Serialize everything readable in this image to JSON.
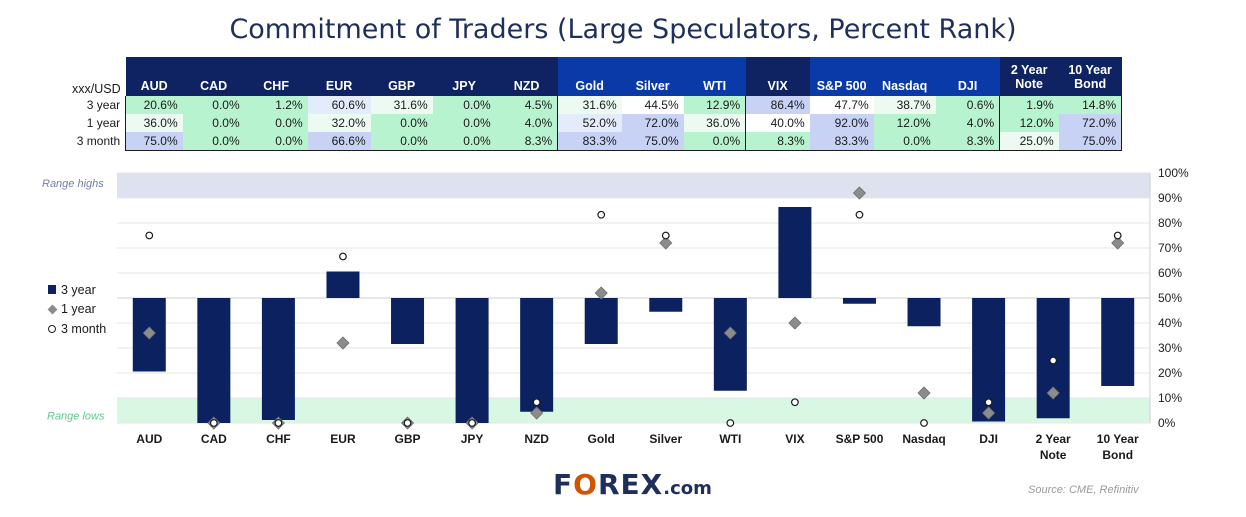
{
  "title": "Commitment of Traders (Large Speculators, Percent Rank)",
  "table": {
    "corner_label": "xxx/USD",
    "headers": [
      "AUD",
      "CAD",
      "CHF",
      "EUR",
      "GBP",
      "JPY",
      "NZD",
      "Gold",
      "Silver",
      "WTI",
      "VIX",
      "S&P 500",
      "Nasdaq",
      "DJI",
      "2 Year Note",
      "10 Year Bond"
    ],
    "header_lines": [
      [
        "AUD"
      ],
      [
        "CAD"
      ],
      [
        "CHF"
      ],
      [
        "EUR"
      ],
      [
        "GBP"
      ],
      [
        "JPY"
      ],
      [
        "NZD"
      ],
      [
        "Gold"
      ],
      [
        "Silver"
      ],
      [
        "WTI"
      ],
      [
        "VIX"
      ],
      [
        "S&P 500"
      ],
      [
        "Nasdaq"
      ],
      [
        "DJI"
      ],
      [
        "2 Year",
        "Note"
      ],
      [
        "10 Year",
        "Bond"
      ]
    ],
    "rows": [
      {
        "label": "3 year",
        "values": [
          "20.6%",
          "0.0%",
          "1.2%",
          "60.6%",
          "31.6%",
          "0.0%",
          "4.5%",
          "31.6%",
          "44.5%",
          "12.9%",
          "86.4%",
          "47.7%",
          "38.7%",
          "0.6%",
          "1.9%",
          "14.8%"
        ]
      },
      {
        "label": "1 year",
        "values": [
          "36.0%",
          "0.0%",
          "0.0%",
          "32.0%",
          "0.0%",
          "0.0%",
          "4.0%",
          "52.0%",
          "72.0%",
          "36.0%",
          "40.0%",
          "92.0%",
          "12.0%",
          "4.0%",
          "12.0%",
          "72.0%"
        ]
      },
      {
        "label": "3 month",
        "values": [
          "75.0%",
          "0.0%",
          "0.0%",
          "66.6%",
          "0.0%",
          "0.0%",
          "8.3%",
          "83.3%",
          "75.0%",
          "0.0%",
          "8.3%",
          "83.3%",
          "0.0%",
          "8.3%",
          "25.0%",
          "75.0%"
        ]
      }
    ]
  },
  "colors": {
    "bar": "#0b2160",
    "diamond": "#8c8c8c",
    "range_high_band": "#dde2ee",
    "range_low_band": "#d9f8e4",
    "range_high_text": "#6f7fa8",
    "range_low_text": "#5fc78a",
    "header_dark": "#0f2262",
    "header_blue": "#0a3aa8"
  },
  "chart_data": {
    "type": "bar",
    "categories": [
      "AUD",
      "CAD",
      "CHF",
      "EUR",
      "GBP",
      "JPY",
      "NZD",
      "Gold",
      "Silver",
      "WTI",
      "VIX",
      "S&P 500",
      "Nasdaq",
      "DJI",
      "2 Year Note",
      "10 Year Bond"
    ],
    "category_lines": [
      [
        "AUD"
      ],
      [
        "CAD"
      ],
      [
        "CHF"
      ],
      [
        "EUR"
      ],
      [
        "GBP"
      ],
      [
        "JPY"
      ],
      [
        "NZD"
      ],
      [
        "Gold"
      ],
      [
        "Silver"
      ],
      [
        "WTI"
      ],
      [
        "VIX"
      ],
      [
        "S&P 500"
      ],
      [
        "Nasdaq"
      ],
      [
        "DJI"
      ],
      [
        "2 Year",
        "Note"
      ],
      [
        "10 Year",
        "Bond"
      ]
    ],
    "baseline": 50,
    "series": [
      {
        "name": "3 year",
        "marker": "bar",
        "values": [
          20.6,
          0.0,
          1.2,
          60.6,
          31.6,
          0.0,
          4.5,
          31.6,
          44.5,
          12.9,
          86.4,
          47.7,
          38.7,
          0.6,
          1.9,
          14.8
        ]
      },
      {
        "name": "1 year",
        "marker": "diamond",
        "values": [
          36.0,
          0.0,
          0.0,
          32.0,
          0.0,
          0.0,
          4.0,
          52.0,
          72.0,
          36.0,
          40.0,
          92.0,
          12.0,
          4.0,
          12.0,
          72.0
        ]
      },
      {
        "name": "3 month",
        "marker": "circle",
        "values": [
          75.0,
          0.0,
          0.0,
          66.6,
          0.0,
          0.0,
          8.3,
          83.3,
          75.0,
          0.0,
          8.3,
          83.3,
          0.0,
          8.3,
          25.0,
          75.0
        ]
      }
    ],
    "ylim": [
      0,
      100
    ],
    "yticks": [
      "0%",
      "10%",
      "20%",
      "30%",
      "40%",
      "50%",
      "60%",
      "70%",
      "80%",
      "90%",
      "100%"
    ],
    "y_axis_side": "right",
    "range_highs": {
      "label": "Range highs",
      "from": 90,
      "to": 100
    },
    "range_lows": {
      "label": "Range lows",
      "from": 0,
      "to": 10
    },
    "legend_position": "left"
  },
  "branding": {
    "logo_text": "FOREX.com",
    "source": "Source: CME, Refinitiv"
  }
}
